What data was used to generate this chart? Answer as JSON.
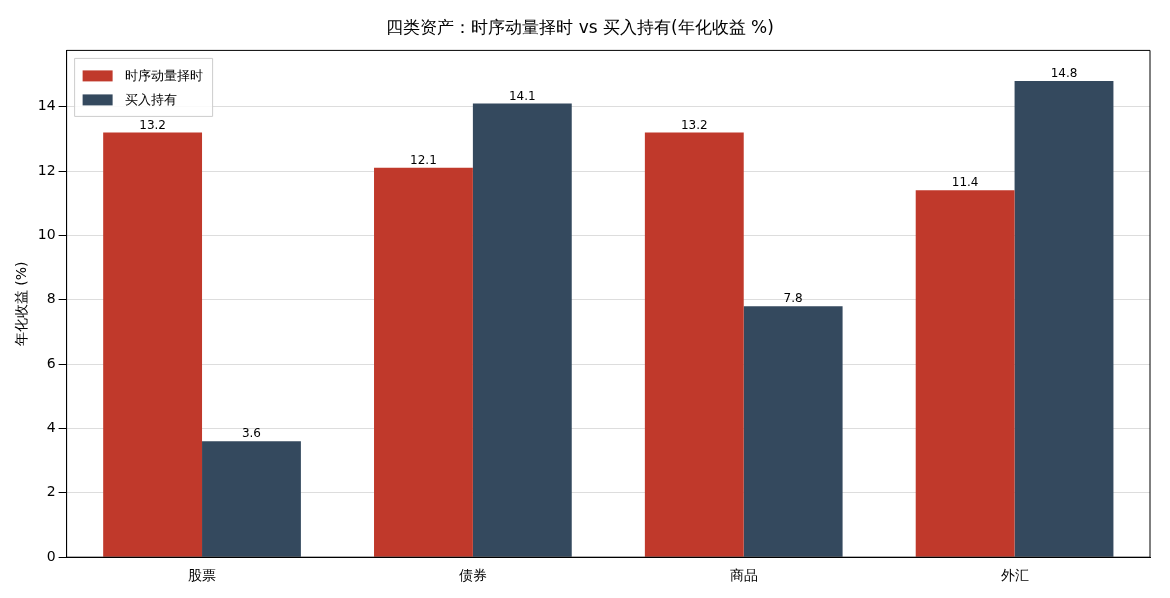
{
  "chart_data": {
    "type": "bar",
    "title": "四类资产：时序动量择时 vs 买入持有(年化收益 %)",
    "ylabel": "年化收益 (%)",
    "categories": [
      "股票",
      "债券",
      "商品",
      "外汇"
    ],
    "series": [
      {
        "name": "时序动量择时",
        "color": "#c0392b",
        "values": [
          13.2,
          12.1,
          13.2,
          11.4
        ]
      },
      {
        "name": "买入持有",
        "color": "#34495e",
        "values": [
          3.6,
          14.1,
          7.8,
          14.8
        ]
      }
    ],
    "ylim": [
      0,
      15.75
    ],
    "yticks": [
      0,
      2,
      4,
      6,
      8,
      10,
      12,
      14
    ],
    "grid": "y",
    "legend": "top left",
    "data_labels": true
  }
}
